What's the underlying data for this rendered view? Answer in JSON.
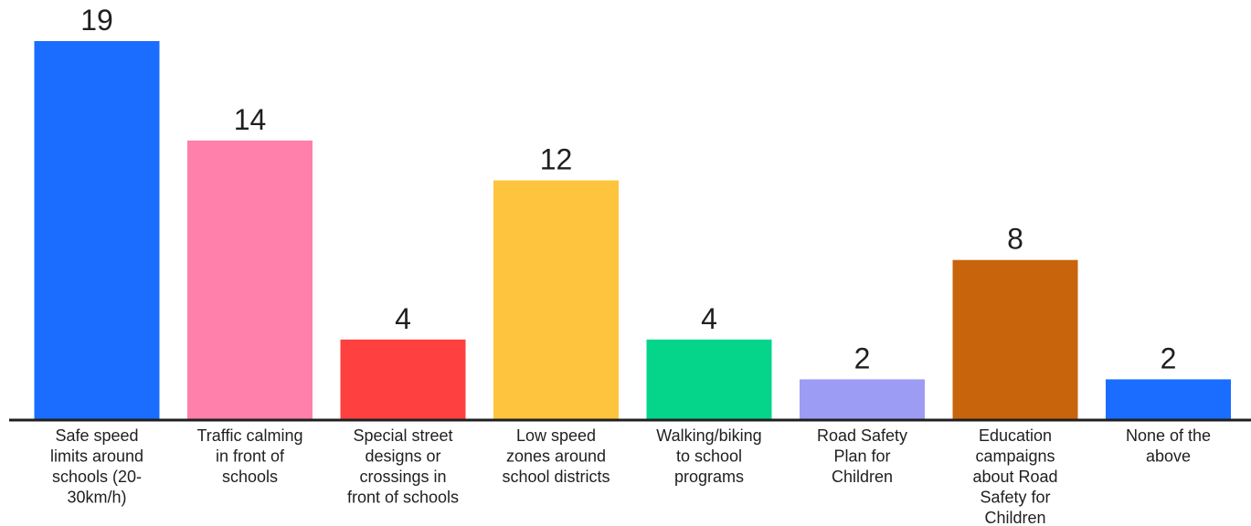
{
  "chart_data": {
    "type": "bar",
    "title": "",
    "xlabel": "",
    "ylabel": "",
    "ylim": [
      0,
      19
    ],
    "grid": false,
    "legend": "none",
    "categories": [
      [
        "Safe speed",
        "limits around",
        "schools (20-",
        "30km/h)"
      ],
      [
        "Traffic calming",
        "in front of",
        "schools"
      ],
      [
        "Special street",
        "designs or",
        "crossings in",
        "front of schools"
      ],
      [
        "Low speed",
        "zones around",
        "school districts"
      ],
      [
        "Walking/biking",
        "to school",
        "programs"
      ],
      [
        "Road Safety",
        "Plan for",
        "Children"
      ],
      [
        "Education",
        "campaigns",
        "about Road",
        "Safety for",
        "Children"
      ],
      [
        "None of the",
        "above"
      ]
    ],
    "values": [
      19,
      14,
      4,
      12,
      4,
      2,
      8,
      2
    ],
    "colors": [
      "#1a6dff",
      "#ff80aa",
      "#ff4040",
      "#ffc43d",
      "#05d58b",
      "#9c9cf5",
      "#c8640c",
      "#1a6dff"
    ]
  }
}
